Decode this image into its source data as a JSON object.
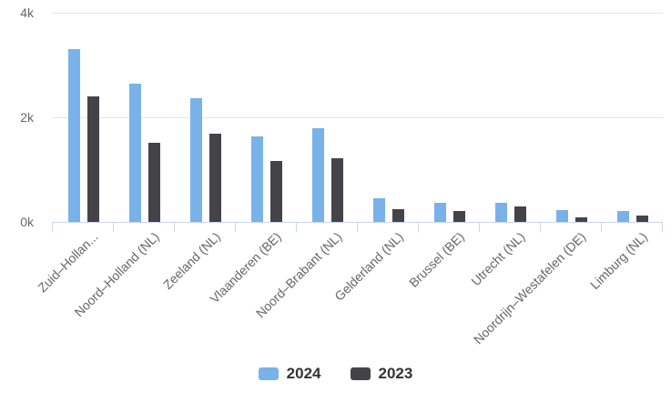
{
  "chart_data": {
    "type": "bar",
    "title": "",
    "xlabel": "",
    "ylabel": "",
    "categories": [
      "Zuid–Hollan...",
      "Noord–Holland (NL)",
      "Zeeland (NL)",
      "Vlaanderen (BE)",
      "Noord–Brabant (NL)",
      "Gelderland (NL)",
      "Brussel (BE)",
      "Utrecht (NL)",
      "Noordrijn–Westafelen (DE)",
      "Limburg (NL)"
    ],
    "series": [
      {
        "name": "2024",
        "color": "#79b1e9",
        "values": [
          3300,
          2650,
          2360,
          1640,
          1800,
          450,
          370,
          360,
          230,
          210
        ]
      },
      {
        "name": "2023",
        "color": "#434348",
        "values": [
          2400,
          1510,
          1680,
          1170,
          1210,
          240,
          210,
          300,
          80,
          120
        ]
      }
    ],
    "ylim": [
      0,
      4000
    ],
    "yticks": [
      {
        "value": 0,
        "label": "0k"
      },
      {
        "value": 2000,
        "label": "2k"
      },
      {
        "value": 4000,
        "label": "4k"
      }
    ],
    "grid": "horizontal",
    "legend_position": "bottom-center",
    "colors": {
      "gridline": "#e6e6e6",
      "axis_line": "#ccd6eb",
      "axis_label": "#666666",
      "legend_text": "#333333",
      "background": "#ffffff"
    }
  }
}
